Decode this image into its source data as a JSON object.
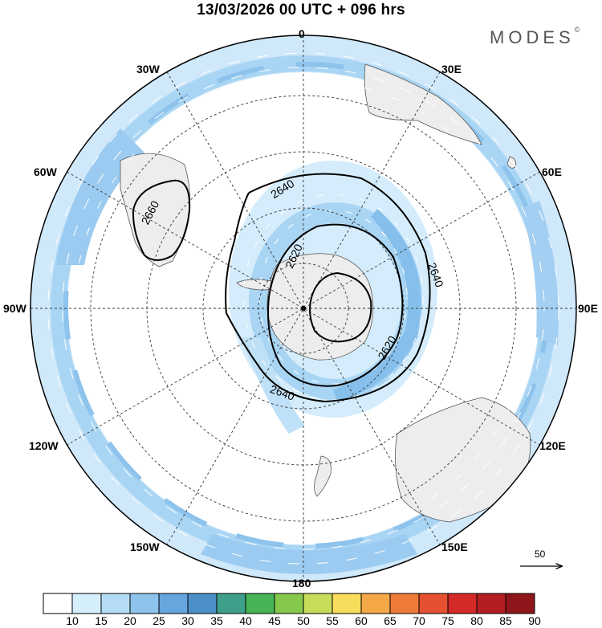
{
  "title": "13/03/2026  00 UTC  + 096 hrs",
  "brand": {
    "name": "MODES",
    "mark": "©"
  },
  "meridian_labels": {
    "lon_0": "0",
    "lon_30e": "30E",
    "lon_60e": "60E",
    "lon_90e": "90E",
    "lon_120e": "120E",
    "lon_150e": "150E",
    "lon_180": "180",
    "lon_150w": "150W",
    "lon_120w": "120W",
    "lon_90w": "90W",
    "lon_60w": "60W",
    "lon_30w": "30W"
  },
  "contour_labels": {
    "c2660": "2660",
    "c2640_a": "2640",
    "c2640_b": "2640",
    "c2640_c": "2640",
    "c2620_a": "2620",
    "c2620_b": "2620"
  },
  "reference_vector": {
    "label": "50"
  },
  "colorbar": {
    "labels": [
      "10",
      "15",
      "20",
      "25",
      "30",
      "35",
      "40",
      "45",
      "50",
      "55",
      "60",
      "65",
      "70",
      "75",
      "80",
      "85",
      "90"
    ],
    "colors": [
      "#ffffff",
      "#d5eefc",
      "#b4dcf5",
      "#8ec4ec",
      "#66a6de",
      "#4a8fc8",
      "#3ea08a",
      "#46b456",
      "#86c84c",
      "#c6dc5a",
      "#f8dc5c",
      "#f4a848",
      "#ee7a38",
      "#e45030",
      "#d42a28",
      "#b41e22",
      "#8e161a"
    ]
  },
  "theme": {
    "ocean_light": "#d4ecfb",
    "jet_mid": "#a9d5f4",
    "jet_strong": "#86bfeb",
    "land": "#ededed",
    "contour": "#000000"
  }
}
